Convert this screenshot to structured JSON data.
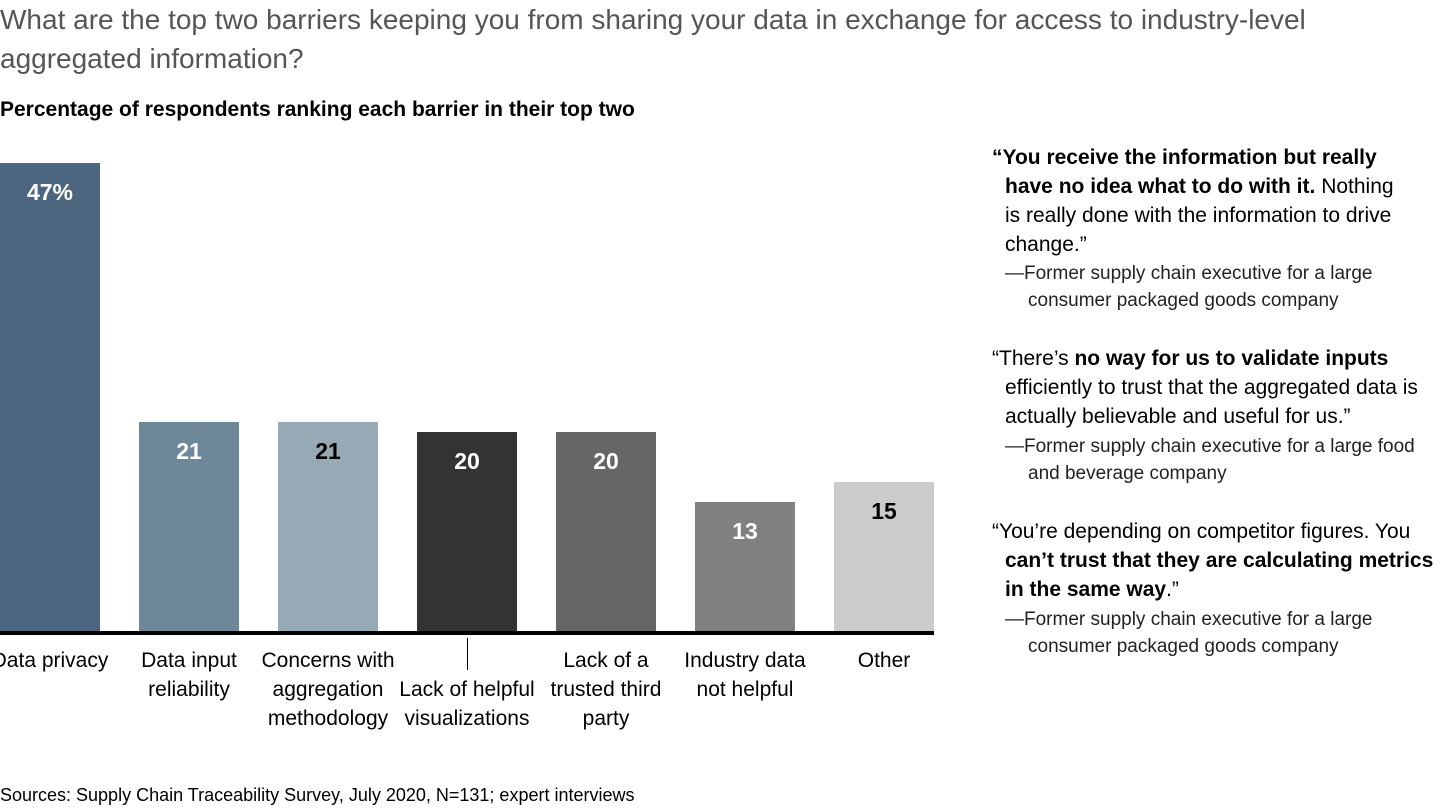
{
  "chart_data": {
    "type": "bar",
    "title": "What are the top two barriers keeping you from sharing your data in exchange for access to industry-level aggregated information?",
    "subtitle": "Percentage of respondents ranking each barrier in their top two",
    "categories": [
      "Data privacy",
      "Data input reliability",
      "Concerns with aggregation methodology",
      "Lack of helpful visualizations",
      "Lack of a trusted third party",
      "Industry data not helpful",
      "Other"
    ],
    "values": [
      47,
      21,
      21,
      20,
      20,
      13,
      15
    ],
    "value_labels": [
      "47%",
      "21",
      "21",
      "20",
      "20",
      "13",
      "15"
    ],
    "colors": [
      "#4d6680",
      "#6e8799",
      "#98a9b6",
      "#333333",
      "#666666",
      "#808080",
      "#cccccc"
    ],
    "label_colors": [
      "#ffffff",
      "#ffffff",
      "#000000",
      "#ffffff",
      "#ffffff",
      "#ffffff",
      "#000000"
    ],
    "source": "Sources: Supply Chain Traceability Survey, July 2020, N=131; expert interviews",
    "quotes": [
      {
        "parts": [
          {
            "text": "“You receive the information but really have no idea what to do with it.",
            "bold": true
          },
          {
            "text": " Nothing is really done with the information to drive change.”",
            "bold": false
          }
        ],
        "attribution": "—Former supply chain executive for a large consumer packaged goods company"
      },
      {
        "parts": [
          {
            "text": "“There’s ",
            "bold": false
          },
          {
            "text": "no way for us to validate inputs",
            "bold": true
          },
          {
            "text": " efficiently to trust that the aggregated data is actually believable and useful for us.”",
            "bold": false
          }
        ],
        "attribution": "—Former supply chain executive for a large food and beverage company"
      },
      {
        "parts": [
          {
            "text": "“You’re depending on competitor figures. You ",
            "bold": false
          },
          {
            "text": "can’t trust that they are calculating metrics in the same way",
            "bold": true
          },
          {
            "text": ".”",
            "bold": false
          }
        ],
        "attribution": "—Former supply chain executive for a large consumer packaged goods company"
      }
    ]
  }
}
